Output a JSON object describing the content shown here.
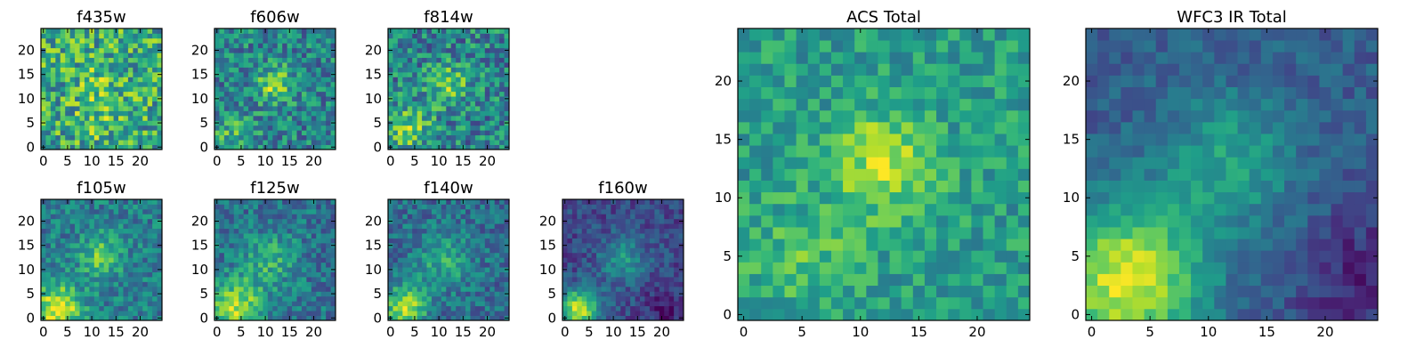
{
  "figure": {
    "background": "#ffffff"
  },
  "colormap": {
    "name": "viridis",
    "stops": [
      "#440154",
      "#482878",
      "#3e4989",
      "#31688e",
      "#26828e",
      "#1f9e89",
      "#35b779",
      "#6ece58",
      "#b5de2b",
      "#fde725"
    ]
  },
  "chart_data": [
    {
      "type": "heatmap",
      "title": "f435w",
      "grid_size": 25,
      "xlim": [
        -0.5,
        24.5
      ],
      "ylim": [
        -0.5,
        24.5
      ],
      "xticks": [
        "0",
        "5",
        "10",
        "15",
        "20"
      ],
      "yticks": [
        "0",
        "5",
        "10",
        "15",
        "20"
      ],
      "model": {
        "noise": 0.3,
        "seed": 11,
        "base": 0.6,
        "sources": [
          [
            12,
            14,
            3.5,
            0.12
          ],
          [
            11,
            6,
            3.0,
            0.12
          ]
        ]
      }
    },
    {
      "type": "heatmap",
      "title": "f606w",
      "grid_size": 25,
      "xlim": [
        -0.5,
        24.5
      ],
      "ylim": [
        -0.5,
        24.5
      ],
      "xticks": [
        "0",
        "5",
        "10",
        "15",
        "20"
      ],
      "yticks": [
        "0",
        "5",
        "10",
        "15",
        "20"
      ],
      "model": {
        "noise": 0.24,
        "seed": 23,
        "base": 0.45,
        "sources": [
          [
            12,
            13,
            2.5,
            0.4
          ],
          [
            3,
            3,
            3.0,
            0.2
          ]
        ]
      }
    },
    {
      "type": "heatmap",
      "title": "f814w",
      "grid_size": 25,
      "xlim": [
        -0.5,
        24.5
      ],
      "ylim": [
        -0.5,
        24.5
      ],
      "xticks": [
        "0",
        "5",
        "10",
        "15",
        "20"
      ],
      "yticks": [
        "0",
        "5",
        "10",
        "15",
        "20"
      ],
      "model": {
        "noise": 0.26,
        "seed": 37,
        "base": 0.45,
        "sources": [
          [
            12,
            13,
            3.0,
            0.3
          ],
          [
            4,
            4,
            3.0,
            0.35
          ]
        ]
      }
    },
    {
      "type": "heatmap",
      "title": "f105w",
      "grid_size": 25,
      "xlim": [
        -0.5,
        24.5
      ],
      "ylim": [
        -0.5,
        24.5
      ],
      "xticks": [
        "0",
        "5",
        "10",
        "15",
        "20"
      ],
      "yticks": [
        "0",
        "5",
        "10",
        "15",
        "20"
      ],
      "model": {
        "noise": 0.18,
        "seed": 41,
        "base": 0.42,
        "sources": [
          [
            12,
            13,
            3.0,
            0.35
          ],
          [
            3,
            2,
            3.5,
            0.55
          ]
        ]
      }
    },
    {
      "type": "heatmap",
      "title": "f125w",
      "grid_size": 25,
      "xlim": [
        -0.5,
        24.5
      ],
      "ylim": [
        -0.5,
        24.5
      ],
      "xticks": [
        "0",
        "5",
        "10",
        "15",
        "20"
      ],
      "yticks": [
        "0",
        "5",
        "10",
        "15",
        "20"
      ],
      "model": {
        "noise": 0.18,
        "seed": 53,
        "base": 0.38,
        "sources": [
          [
            11,
            12,
            4.0,
            0.25
          ],
          [
            4,
            2,
            4.0,
            0.5
          ]
        ]
      }
    },
    {
      "type": "heatmap",
      "title": "f140w",
      "grid_size": 25,
      "xlim": [
        -0.5,
        24.5
      ],
      "ylim": [
        -0.5,
        24.5
      ],
      "xticks": [
        "0",
        "5",
        "10",
        "15",
        "20"
      ],
      "yticks": [
        "0",
        "5",
        "10",
        "15",
        "20"
      ],
      "model": {
        "noise": 0.17,
        "seed": 67,
        "base": 0.36,
        "sources": [
          [
            11,
            12,
            4.0,
            0.25
          ],
          [
            3,
            2,
            3.0,
            0.55
          ]
        ]
      }
    },
    {
      "type": "heatmap",
      "title": "f160w",
      "grid_size": 25,
      "xlim": [
        -0.5,
        24.5
      ],
      "ylim": [
        -0.5,
        24.5
      ],
      "xticks": [
        "0",
        "5",
        "10",
        "15",
        "20"
      ],
      "yticks": [
        "0",
        "5",
        "10",
        "15",
        "20"
      ],
      "model": {
        "noise": 0.13,
        "seed": 79,
        "base": 0.22,
        "sources": [
          [
            12,
            12,
            3.5,
            0.3
          ],
          [
            3,
            2,
            3.0,
            0.7
          ]
        ],
        "dark_corner": [
          21,
          2,
          3.0,
          0.15
        ]
      }
    },
    {
      "type": "heatmap",
      "title": "ACS Total",
      "grid_size": 25,
      "xlim": [
        -0.5,
        24.5
      ],
      "ylim": [
        -0.5,
        24.5
      ],
      "xticks": [
        "0",
        "5",
        "10",
        "15",
        "20"
      ],
      "yticks": [
        "0",
        "5",
        "10",
        "15",
        "20"
      ],
      "model": {
        "noise": 0.16,
        "seed": 97,
        "base": 0.55,
        "sources": [
          [
            12,
            13,
            3.0,
            0.35
          ],
          [
            5,
            5,
            3.5,
            0.15
          ]
        ]
      }
    },
    {
      "type": "heatmap",
      "title": "WFC3 IR Total",
      "grid_size": 25,
      "xlim": [
        -0.5,
        24.5
      ],
      "ylim": [
        -0.5,
        24.5
      ],
      "xticks": [
        "0",
        "5",
        "10",
        "15",
        "20"
      ],
      "yticks": [
        "0",
        "5",
        "10",
        "15",
        "20"
      ],
      "model": {
        "noise": 0.1,
        "seed": 101,
        "base": 0.3,
        "sources": [
          [
            12,
            13,
            4.0,
            0.28
          ],
          [
            3,
            3,
            4.5,
            0.65
          ]
        ],
        "dark_corner": [
          23,
          3,
          4.0,
          0.2
        ]
      }
    }
  ]
}
